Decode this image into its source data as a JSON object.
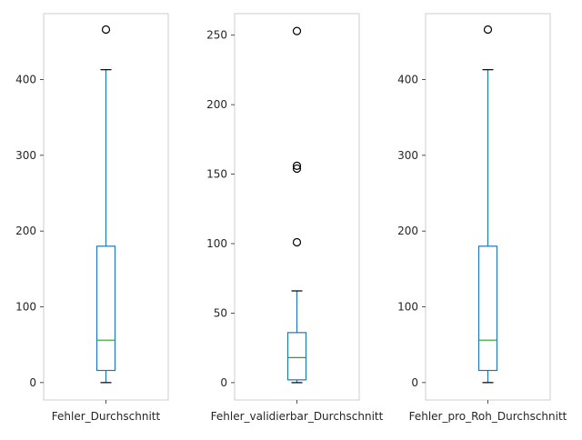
{
  "chart_data": [
    {
      "type": "box",
      "title": "",
      "xlabel": "",
      "ylabel": "",
      "category": "Fehler_Durchschnitt",
      "ylim": [
        -23,
        487
      ],
      "yticks": [
        0,
        100,
        200,
        300,
        400
      ],
      "grid": false,
      "box": {
        "whisker_low": 0,
        "q1": 16,
        "median": 56,
        "q3": 180,
        "whisker_high": 413
      },
      "outliers": [
        466
      ],
      "colors": {
        "box": "#1f77b4",
        "median": "#2ca02c",
        "outlier": "#000000"
      }
    },
    {
      "type": "box",
      "title": "",
      "xlabel": "",
      "ylabel": "",
      "category": "Fehler_validierbar_Durchschnitt",
      "ylim": [
        -12.5,
        265.5
      ],
      "yticks": [
        0,
        50,
        100,
        150,
        200,
        250
      ],
      "grid": false,
      "box": {
        "whisker_low": 0,
        "q1": 2,
        "median": 18,
        "q3": 36,
        "whisker_high": 66
      },
      "outliers": [
        101,
        154,
        156,
        253
      ],
      "colors": {
        "box": "#1f77b4",
        "median": "#2ca02c",
        "outlier": "#000000"
      }
    },
    {
      "type": "box",
      "title": "",
      "xlabel": "",
      "ylabel": "",
      "category": "Fehler_pro_Roh_Durchschnitt",
      "ylim": [
        -23,
        487
      ],
      "yticks": [
        0,
        100,
        200,
        300,
        400
      ],
      "grid": false,
      "box": {
        "whisker_low": 0,
        "q1": 16,
        "median": 56,
        "q3": 180,
        "whisker_high": 413
      },
      "outliers": [
        466
      ],
      "colors": {
        "box": "#1f77b4",
        "median": "#2ca02c",
        "outlier": "#000000"
      }
    }
  ]
}
